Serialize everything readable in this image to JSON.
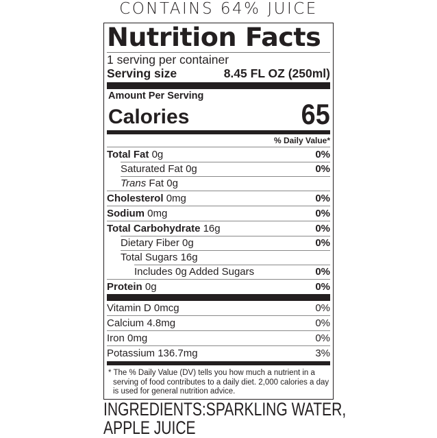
{
  "banner": "CONTAINS 64% JUICE",
  "label": {
    "title": "Nutrition Facts",
    "servings": "1 serving per container",
    "serving_size_label": "Serving size",
    "serving_size_value": "8.45 FL OZ (250ml)",
    "amount_per_serving": "Amount Per Serving",
    "calories_label": "Calories",
    "calories_value": "65",
    "daily_value_header": "% Daily Value*",
    "nutrients": [
      {
        "name": "Total Fat",
        "amount": "0g",
        "dv": "0%"
      },
      {
        "name": "Saturated Fat",
        "amount": "0g",
        "dv": "0%"
      },
      {
        "name": "Trans",
        "name_suffix": "Fat",
        "amount": "0g",
        "dv": ""
      },
      {
        "name": "Cholesterol",
        "amount": "0mg",
        "dv": "0%"
      },
      {
        "name": "Sodium",
        "amount": "0mg",
        "dv": "0%"
      },
      {
        "name": "Total Carbohydrate",
        "amount": "16g",
        "dv": "0%"
      },
      {
        "name": "Dietary Fiber",
        "amount": "0g",
        "dv": "0%"
      },
      {
        "name": "Total Sugars",
        "amount": "16g",
        "dv": ""
      },
      {
        "name": "Includes 0g Added Sugars",
        "amount": "",
        "dv": "0%"
      },
      {
        "name": "Protein",
        "amount": "0g",
        "dv": "0%"
      }
    ],
    "vitamins": [
      {
        "name": "Vitamin D 0mcg",
        "dv": "0%"
      },
      {
        "name": "Calcium 4.8mg",
        "dv": "0%"
      },
      {
        "name": "Iron 0mg",
        "dv": "0%"
      },
      {
        "name": "Potassium 136.7mg",
        "dv": "3%"
      }
    ],
    "footnote": "* The % Daily Value (DV) tells you how much a nutrient in a serving of food contributes to a daily diet. 2,000 calories a day is used for general nutrition advice."
  },
  "ingredients": {
    "line1": "INGREDIENTS:SPARKLING WATER,",
    "line2": "APPLE JUICE"
  }
}
